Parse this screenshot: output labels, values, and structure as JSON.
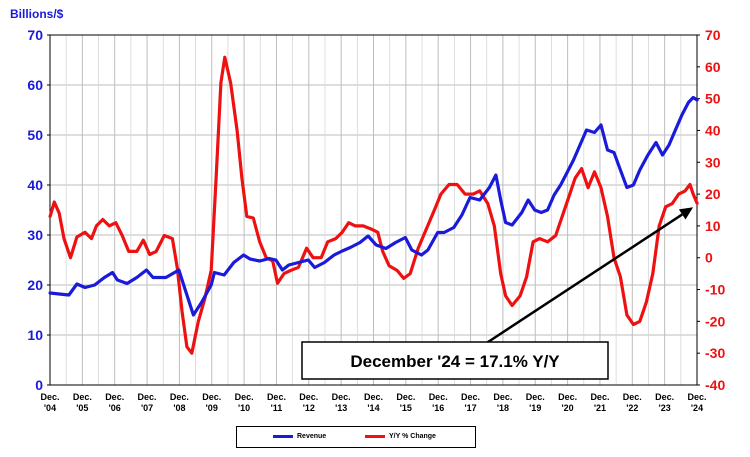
{
  "chart_data": {
    "type": "line",
    "title": "",
    "ylabel_left": "Billions/$",
    "ylabel_right": "",
    "y_left": {
      "min": 0,
      "max": 70,
      "step": 10
    },
    "y_right": {
      "min": -40,
      "max": 70,
      "step": 10
    },
    "x_tick_labels": [
      {
        "top": "Dec.",
        "bottom": "'04"
      },
      {
        "top": "Dec.",
        "bottom": "'05"
      },
      {
        "top": "Dec.",
        "bottom": "'06"
      },
      {
        "top": "Dec.",
        "bottom": "'07"
      },
      {
        "top": "Dec.",
        "bottom": "'08"
      },
      {
        "top": "Dec.",
        "bottom": "'09"
      },
      {
        "top": "Dec.",
        "bottom": "'10"
      },
      {
        "top": "Dec.",
        "bottom": "'11"
      },
      {
        "top": "Dec.",
        "bottom": "'12"
      },
      {
        "top": "Dec.",
        "bottom": "'13"
      },
      {
        "top": "Dec.",
        "bottom": "'14"
      },
      {
        "top": "Dec.",
        "bottom": "'15"
      },
      {
        "top": "Dec.",
        "bottom": "'16"
      },
      {
        "top": "Dec.",
        "bottom": "'17"
      },
      {
        "top": "Dec.",
        "bottom": "'18"
      },
      {
        "top": "Dec.",
        "bottom": "'19"
      },
      {
        "top": "Dec.",
        "bottom": "'20"
      },
      {
        "top": "Dec.",
        "bottom": "'21"
      },
      {
        "top": "Dec.",
        "bottom": "'22"
      },
      {
        "top": "Dec.",
        "bottom": "'23"
      },
      {
        "top": "Dec.",
        "bottom": "'24"
      }
    ],
    "x_domain": [
      2004.917,
      2024.917
    ],
    "grid": true,
    "legend_position": "bottom-center",
    "annotation": "December '24 = 17.1% Y/Y",
    "series": [
      {
        "name": "Revenue",
        "axis": "left",
        "color": "#1a1adb",
        "points": [
          [
            2004.92,
            18.4
          ],
          [
            2005.2,
            18.2
          ],
          [
            2005.5,
            18.0
          ],
          [
            2005.75,
            20.2
          ],
          [
            2006.0,
            19.5
          ],
          [
            2006.3,
            20.0
          ],
          [
            2006.6,
            21.5
          ],
          [
            2006.85,
            22.5
          ],
          [
            2007.0,
            21.0
          ],
          [
            2007.3,
            20.3
          ],
          [
            2007.6,
            21.5
          ],
          [
            2007.9,
            23.0
          ],
          [
            2008.1,
            21.5
          ],
          [
            2008.5,
            21.5
          ],
          [
            2008.9,
            23.0
          ],
          [
            2009.1,
            19.0
          ],
          [
            2009.35,
            14.0
          ],
          [
            2009.6,
            16.5
          ],
          [
            2009.9,
            20.0
          ],
          [
            2010.0,
            22.5
          ],
          [
            2010.3,
            22.0
          ],
          [
            2010.6,
            24.5
          ],
          [
            2010.9,
            26.0
          ],
          [
            2011.1,
            25.2
          ],
          [
            2011.4,
            24.8
          ],
          [
            2011.7,
            25.3
          ],
          [
            2011.9,
            25.0
          ],
          [
            2012.1,
            23.0
          ],
          [
            2012.3,
            24.0
          ],
          [
            2012.6,
            24.5
          ],
          [
            2012.9,
            25.0
          ],
          [
            2013.1,
            23.5
          ],
          [
            2013.4,
            24.5
          ],
          [
            2013.7,
            26.0
          ],
          [
            2013.95,
            26.8
          ],
          [
            2014.2,
            27.5
          ],
          [
            2014.5,
            28.5
          ],
          [
            2014.75,
            29.8
          ],
          [
            2015.0,
            28.0
          ],
          [
            2015.3,
            27.3
          ],
          [
            2015.6,
            28.5
          ],
          [
            2015.9,
            29.5
          ],
          [
            2016.1,
            27.0
          ],
          [
            2016.4,
            26.0
          ],
          [
            2016.6,
            27.0
          ],
          [
            2016.9,
            30.5
          ],
          [
            2017.1,
            30.5
          ],
          [
            2017.4,
            31.5
          ],
          [
            2017.65,
            34.0
          ],
          [
            2017.9,
            37.5
          ],
          [
            2018.2,
            37.0
          ],
          [
            2018.5,
            39.5
          ],
          [
            2018.7,
            42.0
          ],
          [
            2018.85,
            37.0
          ],
          [
            2019.0,
            32.5
          ],
          [
            2019.2,
            32.0
          ],
          [
            2019.5,
            34.5
          ],
          [
            2019.7,
            37.0
          ],
          [
            2019.9,
            35.0
          ],
          [
            2020.1,
            34.5
          ],
          [
            2020.3,
            35.0
          ],
          [
            2020.5,
            38.0
          ],
          [
            2020.7,
            40.0
          ],
          [
            2020.9,
            42.5
          ],
          [
            2021.1,
            45.0
          ],
          [
            2021.3,
            48.0
          ],
          [
            2021.5,
            51.0
          ],
          [
            2021.75,
            50.5
          ],
          [
            2021.95,
            52.0
          ],
          [
            2022.15,
            47.0
          ],
          [
            2022.35,
            46.5
          ],
          [
            2022.55,
            43.0
          ],
          [
            2022.75,
            39.5
          ],
          [
            2022.95,
            40.0
          ],
          [
            2023.15,
            43.0
          ],
          [
            2023.4,
            46.0
          ],
          [
            2023.65,
            48.5
          ],
          [
            2023.85,
            46.0
          ],
          [
            2024.05,
            48.0
          ],
          [
            2024.25,
            51.0
          ],
          [
            2024.45,
            54.0
          ],
          [
            2024.65,
            56.5
          ],
          [
            2024.8,
            57.5
          ],
          [
            2024.92,
            57.0
          ]
        ]
      },
      {
        "name": "Y/Y % Change",
        "axis": "right",
        "color": "#ee1111",
        "points": [
          [
            2004.92,
            13.0
          ],
          [
            2005.05,
            17.5
          ],
          [
            2005.2,
            14.0
          ],
          [
            2005.35,
            6.0
          ],
          [
            2005.55,
            0.0
          ],
          [
            2005.75,
            6.5
          ],
          [
            2006.0,
            8.0
          ],
          [
            2006.2,
            6.0
          ],
          [
            2006.35,
            10.0
          ],
          [
            2006.55,
            12.0
          ],
          [
            2006.75,
            10.0
          ],
          [
            2006.95,
            11.0
          ],
          [
            2007.15,
            7.0
          ],
          [
            2007.35,
            2.0
          ],
          [
            2007.6,
            2.0
          ],
          [
            2007.8,
            5.5
          ],
          [
            2008.0,
            1.0
          ],
          [
            2008.2,
            2.0
          ],
          [
            2008.45,
            7.0
          ],
          [
            2008.7,
            6.0
          ],
          [
            2008.85,
            -3.0
          ],
          [
            2009.0,
            -17.0
          ],
          [
            2009.15,
            -28.0
          ],
          [
            2009.3,
            -30.0
          ],
          [
            2009.5,
            -20.0
          ],
          [
            2009.7,
            -13.0
          ],
          [
            2009.9,
            -4.0
          ],
          [
            2010.05,
            25.0
          ],
          [
            2010.2,
            55.0
          ],
          [
            2010.32,
            63.0
          ],
          [
            2010.5,
            55.0
          ],
          [
            2010.7,
            40.0
          ],
          [
            2010.85,
            25.0
          ],
          [
            2011.0,
            13.0
          ],
          [
            2011.2,
            12.5
          ],
          [
            2011.4,
            5.0
          ],
          [
            2011.6,
            0.0
          ],
          [
            2011.8,
            -1.0
          ],
          [
            2011.95,
            -8.0
          ],
          [
            2012.15,
            -5.0
          ],
          [
            2012.35,
            -4.0
          ],
          [
            2012.6,
            -3.0
          ],
          [
            2012.85,
            3.0
          ],
          [
            2013.05,
            0.0
          ],
          [
            2013.3,
            0.0
          ],
          [
            2013.5,
            5.0
          ],
          [
            2013.75,
            6.0
          ],
          [
            2013.95,
            8.0
          ],
          [
            2014.15,
            11.0
          ],
          [
            2014.35,
            10.0
          ],
          [
            2014.6,
            10.0
          ],
          [
            2014.85,
            9.0
          ],
          [
            2015.05,
            8.0
          ],
          [
            2015.2,
            2.0
          ],
          [
            2015.4,
            -2.5
          ],
          [
            2015.65,
            -4.0
          ],
          [
            2015.85,
            -6.5
          ],
          [
            2016.05,
            -5.0
          ],
          [
            2016.3,
            3.0
          ],
          [
            2016.55,
            9.0
          ],
          [
            2016.8,
            15.0
          ],
          [
            2017.0,
            20.0
          ],
          [
            2017.25,
            23.0
          ],
          [
            2017.5,
            23.0
          ],
          [
            2017.75,
            20.0
          ],
          [
            2018.0,
            20.0
          ],
          [
            2018.2,
            21.0
          ],
          [
            2018.45,
            17.0
          ],
          [
            2018.65,
            10.0
          ],
          [
            2018.85,
            -5.0
          ],
          [
            2019.0,
            -12.0
          ],
          [
            2019.2,
            -15.0
          ],
          [
            2019.45,
            -12.0
          ],
          [
            2019.65,
            -6.0
          ],
          [
            2019.85,
            5.0
          ],
          [
            2020.05,
            6.0
          ],
          [
            2020.3,
            5.0
          ],
          [
            2020.55,
            7.0
          ],
          [
            2020.75,
            13.0
          ],
          [
            2020.95,
            19.0
          ],
          [
            2021.15,
            25.0
          ],
          [
            2021.35,
            28.0
          ],
          [
            2021.55,
            22.0
          ],
          [
            2021.75,
            27.0
          ],
          [
            2021.95,
            22.0
          ],
          [
            2022.15,
            13.0
          ],
          [
            2022.35,
            0.0
          ],
          [
            2022.55,
            -6.0
          ],
          [
            2022.75,
            -18.0
          ],
          [
            2022.95,
            -21.0
          ],
          [
            2023.15,
            -20.0
          ],
          [
            2023.35,
            -14.0
          ],
          [
            2023.55,
            -5.0
          ],
          [
            2023.75,
            10.0
          ],
          [
            2023.95,
            16.0
          ],
          [
            2024.15,
            17.0
          ],
          [
            2024.35,
            20.0
          ],
          [
            2024.55,
            21.0
          ],
          [
            2024.7,
            23.0
          ],
          [
            2024.8,
            20.0
          ],
          [
            2024.92,
            17.1
          ]
        ]
      }
    ]
  }
}
